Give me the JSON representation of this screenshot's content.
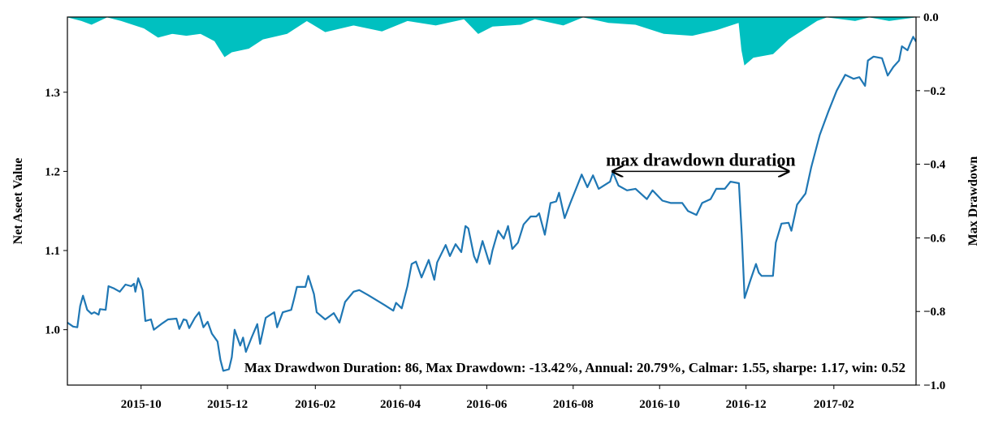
{
  "chart_data": {
    "type": "line",
    "title": "",
    "x_axis": {
      "type": "date",
      "range": [
        "2015-08-10",
        "2017-03-31"
      ],
      "tick_labels": [
        "2015-10",
        "2015-12",
        "2016-02",
        "2016-04",
        "2016-06",
        "2016-08",
        "2016-10",
        "2016-12",
        "2017-02"
      ]
    },
    "y_axis_left": {
      "label": "Net Aseet Value",
      "range": [
        0.93,
        1.395
      ],
      "tick_labels": [
        "1.0",
        "1.1",
        "1.2",
        "1.3"
      ]
    },
    "y_axis_right": {
      "label": "Max Drawdown",
      "range": [
        -1.0,
        0.0
      ],
      "tick_labels": [
        "−1.0",
        "−0.8",
        "−0.6",
        "−0.4",
        "−0.2",
        "0.0"
      ]
    },
    "colors": {
      "nav_line": "#1f77b4",
      "drawdown_fill": "#00c0c0"
    },
    "series": [
      {
        "style": "line",
        "axis": "left",
        "points": [
          [
            "2015-08-10",
            1.009
          ],
          [
            "2015-08-14",
            1.004
          ],
          [
            "2015-08-17",
            1.003
          ],
          [
            "2015-08-19",
            1.03
          ],
          [
            "2015-08-21",
            1.043
          ],
          [
            "2015-08-24",
            1.025
          ],
          [
            "2015-08-27",
            1.02
          ],
          [
            "2015-08-29",
            1.022
          ],
          [
            "2015-09-01",
            1.019
          ],
          [
            "2015-09-02",
            1.026
          ],
          [
            "2015-09-06",
            1.025
          ],
          [
            "2015-09-08",
            1.055
          ],
          [
            "2015-09-12",
            1.052
          ],
          [
            "2015-09-16",
            1.048
          ],
          [
            "2015-09-20",
            1.057
          ],
          [
            "2015-09-24",
            1.055
          ],
          [
            "2015-09-26",
            1.058
          ],
          [
            "2015-09-27",
            1.048
          ],
          [
            "2015-09-29",
            1.065
          ],
          [
            "2015-10-02",
            1.05
          ],
          [
            "2015-10-04",
            1.011
          ],
          [
            "2015-10-08",
            1.013
          ],
          [
            "2015-10-10",
            1.0
          ],
          [
            "2015-10-16",
            1.008
          ],
          [
            "2015-10-20",
            1.013
          ],
          [
            "2015-10-26",
            1.014
          ],
          [
            "2015-10-28",
            1.001
          ],
          [
            "2015-10-31",
            1.013
          ],
          [
            "2015-11-02",
            1.012
          ],
          [
            "2015-11-04",
            1.002
          ],
          [
            "2015-11-08",
            1.015
          ],
          [
            "2015-11-11",
            1.022
          ],
          [
            "2015-11-14",
            1.003
          ],
          [
            "2015-11-17",
            1.01
          ],
          [
            "2015-11-20",
            0.995
          ],
          [
            "2015-11-24",
            0.985
          ],
          [
            "2015-11-26",
            0.962
          ],
          [
            "2015-11-28",
            0.948
          ],
          [
            "2015-12-02",
            0.95
          ],
          [
            "2015-12-04",
            0.965
          ],
          [
            "2015-12-06",
            1.0
          ],
          [
            "2015-12-10",
            0.98
          ],
          [
            "2015-12-12",
            0.99
          ],
          [
            "2015-12-14",
            0.972
          ],
          [
            "2015-12-18",
            0.99
          ],
          [
            "2015-12-22",
            1.007
          ],
          [
            "2015-12-24",
            0.982
          ],
          [
            "2015-12-28",
            1.015
          ],
          [
            "2016-01-03",
            1.022
          ],
          [
            "2016-01-05",
            1.003
          ],
          [
            "2016-01-09",
            1.022
          ],
          [
            "2016-01-15",
            1.025
          ],
          [
            "2016-01-17",
            1.039
          ],
          [
            "2016-01-19",
            1.054
          ],
          [
            "2016-01-25",
            1.054
          ],
          [
            "2016-01-27",
            1.068
          ],
          [
            "2016-01-31",
            1.045
          ],
          [
            "2016-02-02",
            1.022
          ],
          [
            "2016-02-08",
            1.013
          ],
          [
            "2016-02-14",
            1.021
          ],
          [
            "2016-02-18",
            1.009
          ],
          [
            "2016-02-22",
            1.035
          ],
          [
            "2016-02-28",
            1.048
          ],
          [
            "2016-03-03",
            1.05
          ],
          [
            "2016-03-09",
            1.044
          ],
          [
            "2016-03-21",
            1.031
          ],
          [
            "2016-03-27",
            1.024
          ],
          [
            "2016-03-29",
            1.034
          ],
          [
            "2016-04-02",
            1.027
          ],
          [
            "2016-04-06",
            1.055
          ],
          [
            "2016-04-09",
            1.083
          ],
          [
            "2016-04-12",
            1.086
          ],
          [
            "2016-04-16",
            1.066
          ],
          [
            "2016-04-21",
            1.088
          ],
          [
            "2016-04-25",
            1.063
          ],
          [
            "2016-04-27",
            1.085
          ],
          [
            "2016-05-03",
            1.107
          ],
          [
            "2016-05-06",
            1.093
          ],
          [
            "2016-05-10",
            1.108
          ],
          [
            "2016-05-14",
            1.098
          ],
          [
            "2016-05-17",
            1.131
          ],
          [
            "2016-05-19",
            1.128
          ],
          [
            "2016-05-23",
            1.093
          ],
          [
            "2016-05-25",
            1.085
          ],
          [
            "2016-05-29",
            1.112
          ],
          [
            "2016-06-03",
            1.083
          ],
          [
            "2016-06-05",
            1.1
          ],
          [
            "2016-06-09",
            1.125
          ],
          [
            "2016-06-13",
            1.115
          ],
          [
            "2016-06-16",
            1.131
          ],
          [
            "2016-06-19",
            1.102
          ],
          [
            "2016-06-23",
            1.11
          ],
          [
            "2016-06-27",
            1.133
          ],
          [
            "2016-07-02",
            1.143
          ],
          [
            "2016-07-06",
            1.143
          ],
          [
            "2016-07-08",
            1.147
          ],
          [
            "2016-07-12",
            1.12
          ],
          [
            "2016-07-16",
            1.16
          ],
          [
            "2016-07-20",
            1.162
          ],
          [
            "2016-07-22",
            1.173
          ],
          [
            "2016-07-26",
            1.141
          ],
          [
            "2016-07-30",
            1.16
          ],
          [
            "2016-08-03",
            1.178
          ],
          [
            "2016-08-07",
            1.196
          ],
          [
            "2016-08-11",
            1.18
          ],
          [
            "2016-08-15",
            1.195
          ],
          [
            "2016-08-19",
            1.178
          ],
          [
            "2016-08-27",
            1.187
          ],
          [
            "2016-08-29",
            1.199
          ],
          [
            "2016-09-02",
            1.182
          ],
          [
            "2016-09-08",
            1.176
          ],
          [
            "2016-09-14",
            1.178
          ],
          [
            "2016-09-22",
            1.165
          ],
          [
            "2016-09-26",
            1.176
          ],
          [
            "2016-10-03",
            1.163
          ],
          [
            "2016-10-09",
            1.16
          ],
          [
            "2016-10-17",
            1.16
          ],
          [
            "2016-10-21",
            1.15
          ],
          [
            "2016-10-27",
            1.145
          ],
          [
            "2016-10-31",
            1.16
          ],
          [
            "2016-11-06",
            1.165
          ],
          [
            "2016-11-10",
            1.178
          ],
          [
            "2016-11-16",
            1.178
          ],
          [
            "2016-11-20",
            1.187
          ],
          [
            "2016-11-26",
            1.185
          ],
          [
            "2016-11-28",
            1.12
          ],
          [
            "2016-11-30",
            1.04
          ],
          [
            "2016-12-04",
            1.062
          ],
          [
            "2016-12-08",
            1.083
          ],
          [
            "2016-12-10",
            1.072
          ],
          [
            "2016-12-12",
            1.068
          ],
          [
            "2016-12-20",
            1.068
          ],
          [
            "2016-12-22",
            1.11
          ],
          [
            "2016-12-26",
            1.134
          ],
          [
            "2016-12-31",
            1.135
          ],
          [
            "2017-01-02",
            1.125
          ],
          [
            "2017-01-06",
            1.158
          ],
          [
            "2017-01-12",
            1.172
          ],
          [
            "2017-01-16",
            1.205
          ],
          [
            "2017-01-22",
            1.246
          ],
          [
            "2017-01-28",
            1.275
          ],
          [
            "2017-02-03",
            1.302
          ],
          [
            "2017-02-09",
            1.322
          ],
          [
            "2017-02-15",
            1.317
          ],
          [
            "2017-02-19",
            1.319
          ],
          [
            "2017-02-23",
            1.308
          ],
          [
            "2017-02-25",
            1.34
          ],
          [
            "2017-03-01",
            1.345
          ],
          [
            "2017-03-07",
            1.343
          ],
          [
            "2017-03-11",
            1.321
          ],
          [
            "2017-03-15",
            1.332
          ],
          [
            "2017-03-19",
            1.34
          ],
          [
            "2017-03-21",
            1.358
          ],
          [
            "2017-03-25",
            1.353
          ],
          [
            "2017-03-27",
            1.362
          ],
          [
            "2017-03-29",
            1.37
          ],
          [
            "2017-03-31",
            1.364
          ]
        ]
      },
      {
        "style": "area",
        "axis": "right",
        "points": [
          [
            "2015-08-10",
            0.0
          ],
          [
            "2015-08-20",
            -0.01
          ],
          [
            "2015-08-27",
            -0.02
          ],
          [
            "2015-09-07",
            0.0
          ],
          [
            "2015-09-17",
            -0.01
          ],
          [
            "2015-10-03",
            -0.03
          ],
          [
            "2015-10-13",
            -0.055
          ],
          [
            "2015-10-23",
            -0.045
          ],
          [
            "2015-11-02",
            -0.05
          ],
          [
            "2015-11-12",
            -0.045
          ],
          [
            "2015-11-22",
            -0.065
          ],
          [
            "2015-11-29",
            -0.108
          ],
          [
            "2015-12-04",
            -0.095
          ],
          [
            "2015-12-16",
            -0.085
          ],
          [
            "2015-12-26",
            -0.06
          ],
          [
            "2016-01-12",
            -0.045
          ],
          [
            "2016-01-26",
            -0.01
          ],
          [
            "2016-02-08",
            -0.04
          ],
          [
            "2016-02-28",
            -0.022
          ],
          [
            "2016-03-19",
            -0.038
          ],
          [
            "2016-04-06",
            -0.01
          ],
          [
            "2016-04-26",
            -0.022
          ],
          [
            "2016-05-16",
            -0.005
          ],
          [
            "2016-05-26",
            -0.045
          ],
          [
            "2016-06-05",
            -0.025
          ],
          [
            "2016-06-25",
            -0.02
          ],
          [
            "2016-07-05",
            -0.005
          ],
          [
            "2016-07-25",
            -0.022
          ],
          [
            "2016-08-08",
            0.0
          ],
          [
            "2016-08-26",
            -0.015
          ],
          [
            "2016-09-14",
            -0.02
          ],
          [
            "2016-10-04",
            -0.045
          ],
          [
            "2016-10-24",
            -0.05
          ],
          [
            "2016-11-10",
            -0.035
          ],
          [
            "2016-11-26",
            -0.015
          ],
          [
            "2016-11-28",
            -0.09
          ],
          [
            "2016-11-30",
            -0.13
          ],
          [
            "2016-12-06",
            -0.11
          ],
          [
            "2016-12-20",
            -0.1
          ],
          [
            "2016-12-31",
            -0.06
          ],
          [
            "2017-01-10",
            -0.035
          ],
          [
            "2017-01-20",
            -0.01
          ],
          [
            "2017-01-27",
            0.0
          ],
          [
            "2017-02-16",
            -0.01
          ],
          [
            "2017-02-26",
            0.0
          ],
          [
            "2017-03-12",
            -0.01
          ],
          [
            "2017-03-31",
            0.0
          ]
        ]
      }
    ],
    "annotations": [
      {
        "text": "max drawdown duration",
        "arrow_from": "2016-08-29",
        "arrow_to": "2016-12-31",
        "y": 1.2
      },
      {
        "text": "Max Drawdwon Duration: 86, Max Drawdown: -13.42%, Annual: 20.79%, Calmar: 1.55, sharpe: 1.17, win: 0.52"
      }
    ],
    "grid": false,
    "legend": "none"
  }
}
